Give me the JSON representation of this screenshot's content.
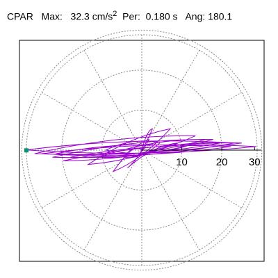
{
  "header": {
    "station": "CPAR",
    "max_label": "Max:",
    "max_value": "32.3",
    "max_unit": "cm/s",
    "max_unit_exp": "2",
    "per_label": "Per:",
    "per_value": "0.180 s",
    "ang_label": "Ang:",
    "ang_value": "180.1"
  },
  "chart_data": {
    "type": "polar",
    "title": "",
    "r_max": 32.3,
    "r_ticks": [
      10,
      20,
      30
    ],
    "rings": [
      10,
      20,
      30
    ],
    "spokes_deg": [
      0,
      30,
      60,
      90,
      120,
      150,
      180,
      210,
      240,
      270,
      300,
      330
    ],
    "grid": true,
    "trace_color": "#9900cc",
    "marker_color": "#00996b",
    "max_angle_deg": 180.1,
    "max_radius": 32.3,
    "trace": [
      [
        0,
        0
      ],
      [
        3,
        6
      ],
      [
        -4,
        -5
      ],
      [
        10,
        2
      ],
      [
        -12,
        -2
      ],
      [
        18,
        3
      ],
      [
        -20,
        -2
      ],
      [
        25,
        1
      ],
      [
        -28,
        -1
      ],
      [
        32,
        1
      ],
      [
        -32.3,
        0.05
      ],
      [
        26,
        2
      ],
      [
        -25,
        -2
      ],
      [
        20,
        3
      ],
      [
        -22,
        -3
      ],
      [
        28,
        2
      ],
      [
        -30,
        -1
      ],
      [
        15,
        4
      ],
      [
        -15,
        -4
      ],
      [
        8,
        6
      ],
      [
        -8,
        -6
      ],
      [
        2,
        3
      ],
      [
        -3,
        -2
      ],
      [
        22,
        2
      ],
      [
        -24,
        -1
      ],
      [
        12,
        1
      ],
      [
        -10,
        0
      ],
      [
        5,
        2
      ],
      [
        -5,
        -2
      ],
      [
        0,
        0
      ]
    ]
  }
}
